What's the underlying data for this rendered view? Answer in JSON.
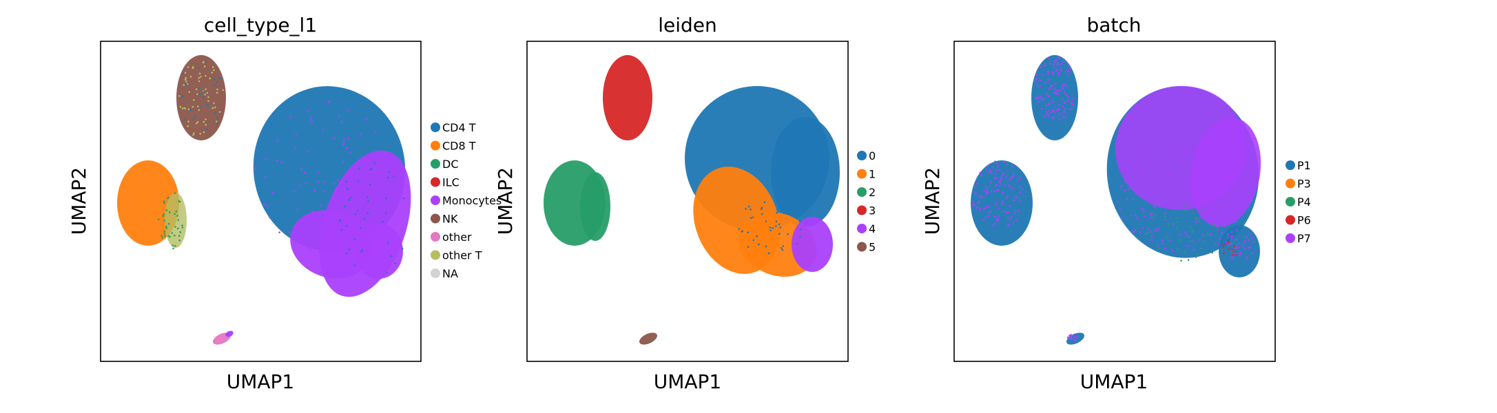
{
  "chart_data": [
    {
      "type": "scatter",
      "title": "cell_type_l1",
      "xlabel": "UMAP1",
      "ylabel": "UMAP2",
      "grid": false,
      "legend_placement": "right",
      "legend": [
        {
          "label": "CD4 T",
          "color": "#1f77b4"
        },
        {
          "label": "CD8 T",
          "color": "#ff7f0e"
        },
        {
          "label": "DC",
          "color": "#279e68"
        },
        {
          "label": "ILC",
          "color": "#d62728"
        },
        {
          "label": "Monocytes",
          "color": "#aa40fc"
        },
        {
          "label": "NK",
          "color": "#8c564b"
        },
        {
          "label": "other",
          "color": "#e377c2"
        },
        {
          "label": "other T",
          "color": "#b5bd61"
        },
        {
          "label": "NA",
          "color": "#d3d3d3"
        }
      ]
    },
    {
      "type": "scatter",
      "title": "leiden",
      "xlabel": "UMAP1",
      "ylabel": "UMAP2",
      "grid": false,
      "legend_placement": "right",
      "legend": [
        {
          "label": "0",
          "color": "#1f77b4"
        },
        {
          "label": "1",
          "color": "#ff7f0e"
        },
        {
          "label": "2",
          "color": "#279e68"
        },
        {
          "label": "3",
          "color": "#d62728"
        },
        {
          "label": "4",
          "color": "#aa40fc"
        },
        {
          "label": "5",
          "color": "#8c564b"
        }
      ]
    },
    {
      "type": "scatter",
      "title": "batch",
      "xlabel": "UMAP1",
      "ylabel": "UMAP2",
      "grid": false,
      "legend_placement": "right",
      "legend": [
        {
          "label": "P1",
          "color": "#1f77b4"
        },
        {
          "label": "P3",
          "color": "#ff7f0e"
        },
        {
          "label": "P4",
          "color": "#279e68"
        },
        {
          "label": "P6",
          "color": "#d62728"
        },
        {
          "label": "P7",
          "color": "#aa40fc"
        }
      ]
    }
  ]
}
